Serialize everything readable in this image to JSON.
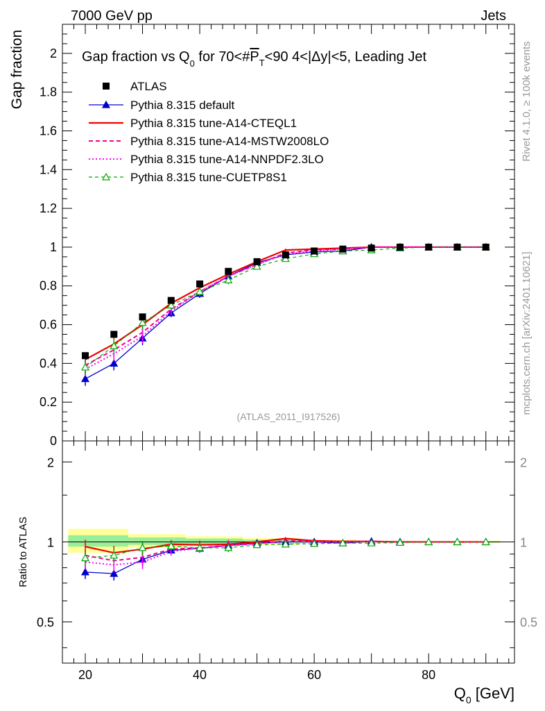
{
  "header": {
    "left": "7000 GeV pp",
    "right": "Jets"
  },
  "side_labels": {
    "rivet": "Rivet 4.1.0, ≥ 100k events",
    "mcplots": "mcplots.cern.ch [arXiv:2401.10621]"
  },
  "colors": {
    "atlas": "#000000",
    "default": "#0000cc",
    "a14_cteql1": "#ee0000",
    "a14_mstw": "#ee0088",
    "a14_nnpdf": "#ff00ff",
    "cuetp8s1": "#00aa00",
    "band_outer": "#ffff99",
    "band_inner": "#99ee99"
  },
  "chart_data": [
    {
      "type": "line",
      "title": "Gap fraction vs Q₀ for 70<#P̅T<90  4<|Δy|<5, Leading Jet",
      "title_parts": {
        "pre": "Gap fraction vs Q",
        "sub0": "0",
        "mid": " for 70<#",
        "pbar": "P",
        "subT": "T",
        "post": "<90  4<|Δy|<5, Leading Jet"
      },
      "ylabel": "Gap fraction",
      "xlabel": "Q",
      "xlabel_sub": "0",
      "xlabel_unit": " [GeV]",
      "watermark": "(ATLAS_2011_I917526)",
      "xlim": [
        16,
        95
      ],
      "ylim": [
        0,
        2.15
      ],
      "y_ticks": [
        "0",
        "0.2",
        "0.4",
        "0.6",
        "0.8",
        "1",
        "1.2",
        "1.4",
        "1.6",
        "1.8",
        "2"
      ],
      "x_ticks": [
        "20",
        "40",
        "60",
        "80"
      ],
      "x": [
        20,
        25,
        30,
        35,
        40,
        45,
        50,
        55,
        60,
        65,
        70,
        75,
        80,
        85,
        90
      ],
      "series": [
        {
          "name": "ATLAS",
          "key": "atlas",
          "style": "square",
          "values": [
            0.44,
            0.55,
            0.64,
            0.725,
            0.81,
            0.875,
            0.925,
            0.96,
            0.98,
            0.99,
            0.995,
            1.0,
            1.0,
            1.0,
            1.0
          ]
        },
        {
          "name": "Pythia 8.315 default",
          "key": "default",
          "style": "line-triangle",
          "values": [
            0.32,
            0.4,
            0.53,
            0.66,
            0.76,
            0.85,
            0.92,
            0.96,
            0.975,
            0.98,
            1.0,
            1.0,
            1.0,
            1.0,
            1.0
          ]
        },
        {
          "name": "Pythia 8.315 tune-A14-CTEQL1",
          "key": "a14_cteql1",
          "style": "solid",
          "values": [
            0.42,
            0.5,
            0.6,
            0.71,
            0.79,
            0.86,
            0.925,
            0.985,
            0.99,
            0.995,
            1.0,
            1.0,
            1.0,
            1.0,
            1.0
          ]
        },
        {
          "name": "Pythia 8.315 tune-A14-MSTW2008LO",
          "key": "a14_mstw",
          "style": "dashed",
          "values": [
            0.39,
            0.47,
            0.56,
            0.68,
            0.77,
            0.85,
            0.91,
            0.97,
            0.985,
            0.99,
            1.0,
            1.0,
            1.0,
            1.0,
            1.0
          ]
        },
        {
          "name": "Pythia 8.315 tune-A14-NNPDF2.3LO",
          "key": "a14_nnpdf",
          "style": "dotted",
          "values": [
            0.37,
            0.45,
            0.54,
            0.67,
            0.77,
            0.85,
            0.91,
            0.965,
            0.98,
            0.99,
            1.0,
            1.0,
            1.0,
            1.0,
            1.0
          ]
        },
        {
          "name": "Pythia 8.315 tune-CUETP8S1",
          "key": "cuetp8s1",
          "style": "dashed-triangle",
          "values": [
            0.38,
            0.49,
            0.61,
            0.7,
            0.77,
            0.83,
            0.9,
            0.94,
            0.965,
            0.98,
            0.985,
            0.995,
            1.0,
            1.0,
            1.0
          ]
        }
      ]
    },
    {
      "type": "line",
      "title": "",
      "ylabel": "Ratio to ATLAS",
      "xlim": [
        16,
        95
      ],
      "ylim": [
        0.35,
        2.4
      ],
      "log_y": true,
      "y_ticks": [
        "0.5",
        "1",
        "2"
      ],
      "x_ticks": [
        "20",
        "40",
        "60",
        "80"
      ],
      "x": [
        20,
        25,
        30,
        35,
        40,
        45,
        50,
        55,
        60,
        65,
        70,
        75,
        80,
        85,
        90
      ],
      "series": [
        {
          "name": "Pythia 8.315 default",
          "key": "default",
          "values": [
            0.77,
            0.76,
            0.86,
            0.93,
            0.945,
            0.97,
            0.99,
            1.0,
            1.0,
            0.99,
            1.005,
            1.0,
            1.0,
            1.0,
            1.0
          ]
        },
        {
          "name": "Pythia 8.315 tune-A14-CTEQL1",
          "key": "a14_cteql1",
          "values": [
            0.96,
            0.91,
            0.94,
            0.98,
            0.975,
            0.98,
            1.0,
            1.03,
            1.01,
            1.005,
            1.005,
            1.0,
            1.0,
            1.0,
            1.0
          ]
        },
        {
          "name": "Pythia 8.315 tune-A14-MSTW2008LO",
          "key": "a14_mstw",
          "values": [
            0.89,
            0.85,
            0.875,
            0.94,
            0.95,
            0.97,
            0.985,
            1.01,
            1.005,
            1.0,
            1.005,
            1.0,
            1.0,
            1.0,
            1.0
          ]
        },
        {
          "name": "Pythia 8.315 tune-A14-NNPDF2.3LO",
          "key": "a14_nnpdf",
          "values": [
            0.84,
            0.82,
            0.84,
            0.92,
            0.95,
            0.97,
            0.985,
            1.005,
            1.0,
            1.0,
            1.005,
            1.0,
            1.0,
            1.0,
            1.0
          ]
        },
        {
          "name": "Pythia 8.315 tune-CUETP8S1",
          "key": "cuetp8s1",
          "values": [
            0.87,
            0.89,
            0.95,
            0.965,
            0.95,
            0.95,
            0.975,
            0.98,
            0.985,
            0.99,
            0.99,
            0.995,
            1.0,
            1.0,
            1.0
          ]
        }
      ],
      "bands": {
        "outer": [
          [
            17,
            27.5,
            0.91,
            1.12
          ],
          [
            27.5,
            37.5,
            0.95,
            1.07
          ],
          [
            37.5,
            47.5,
            0.965,
            1.05
          ],
          [
            47.5,
            57.5,
            0.975,
            1.035
          ],
          [
            57.5,
            67.5,
            0.985,
            1.02
          ],
          [
            67.5,
            92.5,
            0.99,
            1.01
          ]
        ],
        "inner": [
          [
            17,
            27.5,
            0.96,
            1.06
          ],
          [
            27.5,
            37.5,
            0.975,
            1.04
          ],
          [
            37.5,
            47.5,
            0.98,
            1.03
          ],
          [
            47.5,
            57.5,
            0.985,
            1.02
          ],
          [
            57.5,
            67.5,
            0.99,
            1.012
          ],
          [
            67.5,
            92.5,
            0.995,
            1.006
          ]
        ]
      }
    }
  ]
}
